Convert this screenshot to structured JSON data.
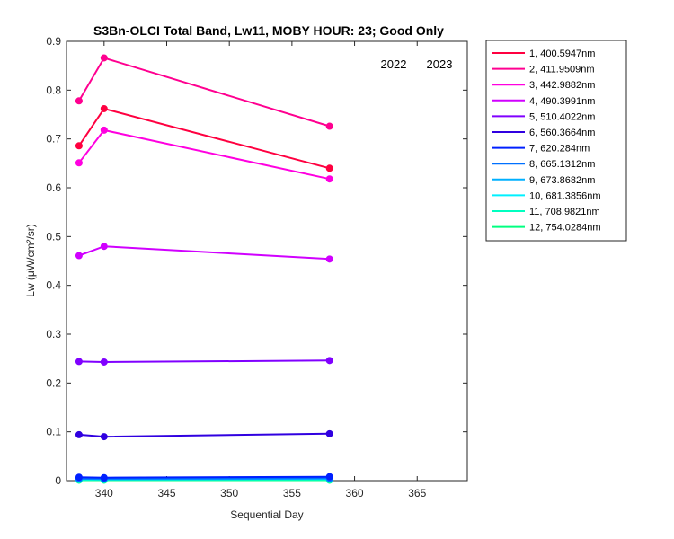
{
  "chart_data": {
    "type": "line",
    "title": "S3Bn-OLCI Total Band,  Lw11, MOBY HOUR: 23;  Good Only",
    "xlabel": "Sequential Day",
    "ylabel": "Lw (μW/cm²/sr)",
    "xlim": [
      337,
      369
    ],
    "ylim": [
      0,
      0.9
    ],
    "xticks": [
      340,
      345,
      350,
      355,
      360,
      365
    ],
    "yticks": [
      0,
      0.1,
      0.2,
      0.3,
      0.4,
      0.5,
      0.6,
      0.7,
      0.8,
      0.9
    ],
    "xtick_labels": [
      "340",
      "345",
      "350",
      "355",
      "360",
      "365"
    ],
    "ytick_labels": [
      "0",
      "0.1",
      "0.2",
      "0.3",
      "0.4",
      "0.5",
      "0.6",
      "0.7",
      "0.8",
      "0.9"
    ],
    "grid": false,
    "legend_position": "outside-right-top",
    "year_labels": [
      "2022",
      "2023"
    ],
    "x": [
      338,
      340,
      358
    ],
    "series": [
      {
        "name": "1, 400.5947nm",
        "color": "#ff0040",
        "values": [
          0.686,
          0.762,
          0.64
        ]
      },
      {
        "name": "2, 411.9509nm",
        "color": "#ff0090",
        "values": [
          0.778,
          0.866,
          0.726
        ]
      },
      {
        "name": "3, 442.9882nm",
        "color": "#ff00e0",
        "values": [
          0.651,
          0.718,
          0.618
        ]
      },
      {
        "name": "4, 490.3991nm",
        "color": "#d000ff",
        "values": [
          0.461,
          0.48,
          0.454
        ]
      },
      {
        "name": "5, 510.4022nm",
        "color": "#8000ff",
        "values": [
          0.244,
          0.243,
          0.246
        ]
      },
      {
        "name": "6, 560.3664nm",
        "color": "#3000e0",
        "values": [
          0.094,
          0.09,
          0.096
        ]
      },
      {
        "name": "7,  620.284nm",
        "color": "#0020ff",
        "values": [
          0.007,
          0.006,
          0.008
        ]
      },
      {
        "name": "8, 665.1312nm",
        "color": "#0070ff",
        "values": [
          0.004,
          0.004,
          0.005
        ]
      },
      {
        "name": "9, 673.8682nm",
        "color": "#00b0ff",
        "values": [
          0.004,
          0.003,
          0.004
        ]
      },
      {
        "name": "10, 681.3856nm",
        "color": "#00f0ff",
        "values": [
          0.003,
          0.003,
          0.004
        ]
      },
      {
        "name": "11, 708.9821nm",
        "color": "#00ffc0",
        "values": [
          0.002,
          0.002,
          0.002
        ]
      },
      {
        "name": "12, 754.0284nm",
        "color": "#00ff80",
        "values": [
          0.001,
          0.001,
          0.001
        ]
      }
    ]
  }
}
